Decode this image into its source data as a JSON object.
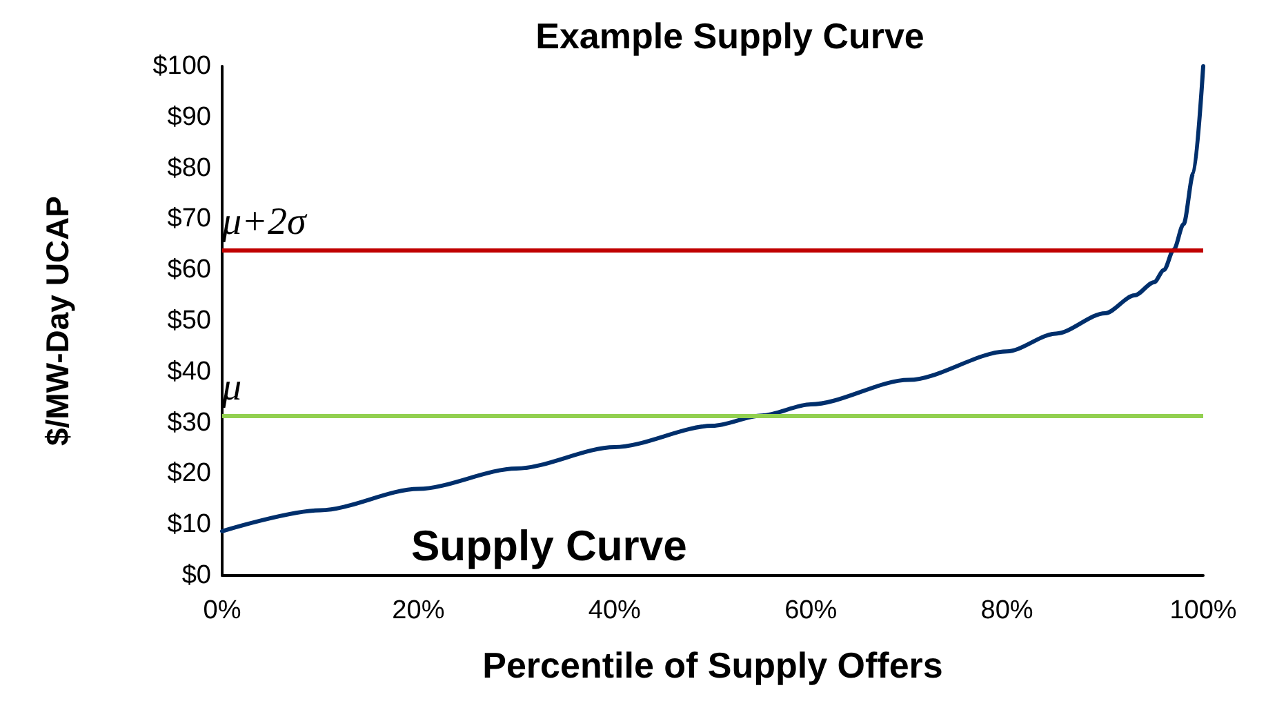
{
  "chart_data": {
    "type": "line",
    "title": "Example Supply Curve",
    "xlabel": "Percentile of Supply Offers",
    "ylabel": "$/MW-Day UCAP",
    "x": [
      0,
      10,
      20,
      30,
      40,
      50,
      55,
      60,
      70,
      80,
      85,
      90,
      93,
      95,
      96,
      97,
      98,
      99,
      100
    ],
    "series": [
      {
        "color": "#002f6c",
        "values": [
          8.7,
          12.8,
          17,
          21,
          25.2,
          29.4,
          31.4,
          33.6,
          38.4,
          44,
          47.5,
          51.5,
          55,
          57.6,
          60,
          64,
          69,
          79,
          100
        ]
      }
    ],
    "xlim": [
      0,
      100
    ],
    "xticks": [
      {
        "value": 0,
        "label": "0%"
      },
      {
        "value": 20,
        "label": "20%"
      },
      {
        "value": 40,
        "label": "40%"
      },
      {
        "value": 60,
        "label": "60%"
      },
      {
        "value": 80,
        "label": "80%"
      },
      {
        "value": 100,
        "label": "100%"
      }
    ],
    "ylim": [
      0,
      100
    ],
    "yticks": [
      {
        "value": 0,
        "label": "$0"
      },
      {
        "value": 10,
        "label": "$10"
      },
      {
        "value": 20,
        "label": "$20"
      },
      {
        "value": 30,
        "label": "$30"
      },
      {
        "value": 40,
        "label": "$40"
      },
      {
        "value": 50,
        "label": "$50"
      },
      {
        "value": 60,
        "label": "$60"
      },
      {
        "value": 70,
        "label": "$70"
      },
      {
        "value": 80,
        "label": "$80"
      },
      {
        "value": 90,
        "label": "$90"
      },
      {
        "value": 100,
        "label": "$100"
      }
    ],
    "ref_lines": [
      {
        "axis": "y",
        "value": 64,
        "label": "μ+2σ",
        "color": "#c00000"
      },
      {
        "axis": "y",
        "value": 31.4,
        "label": "μ",
        "color": "#92d050"
      }
    ],
    "annotations": [
      "Supply Curve"
    ],
    "grid": false,
    "marker": "none",
    "line_style": "solid"
  }
}
